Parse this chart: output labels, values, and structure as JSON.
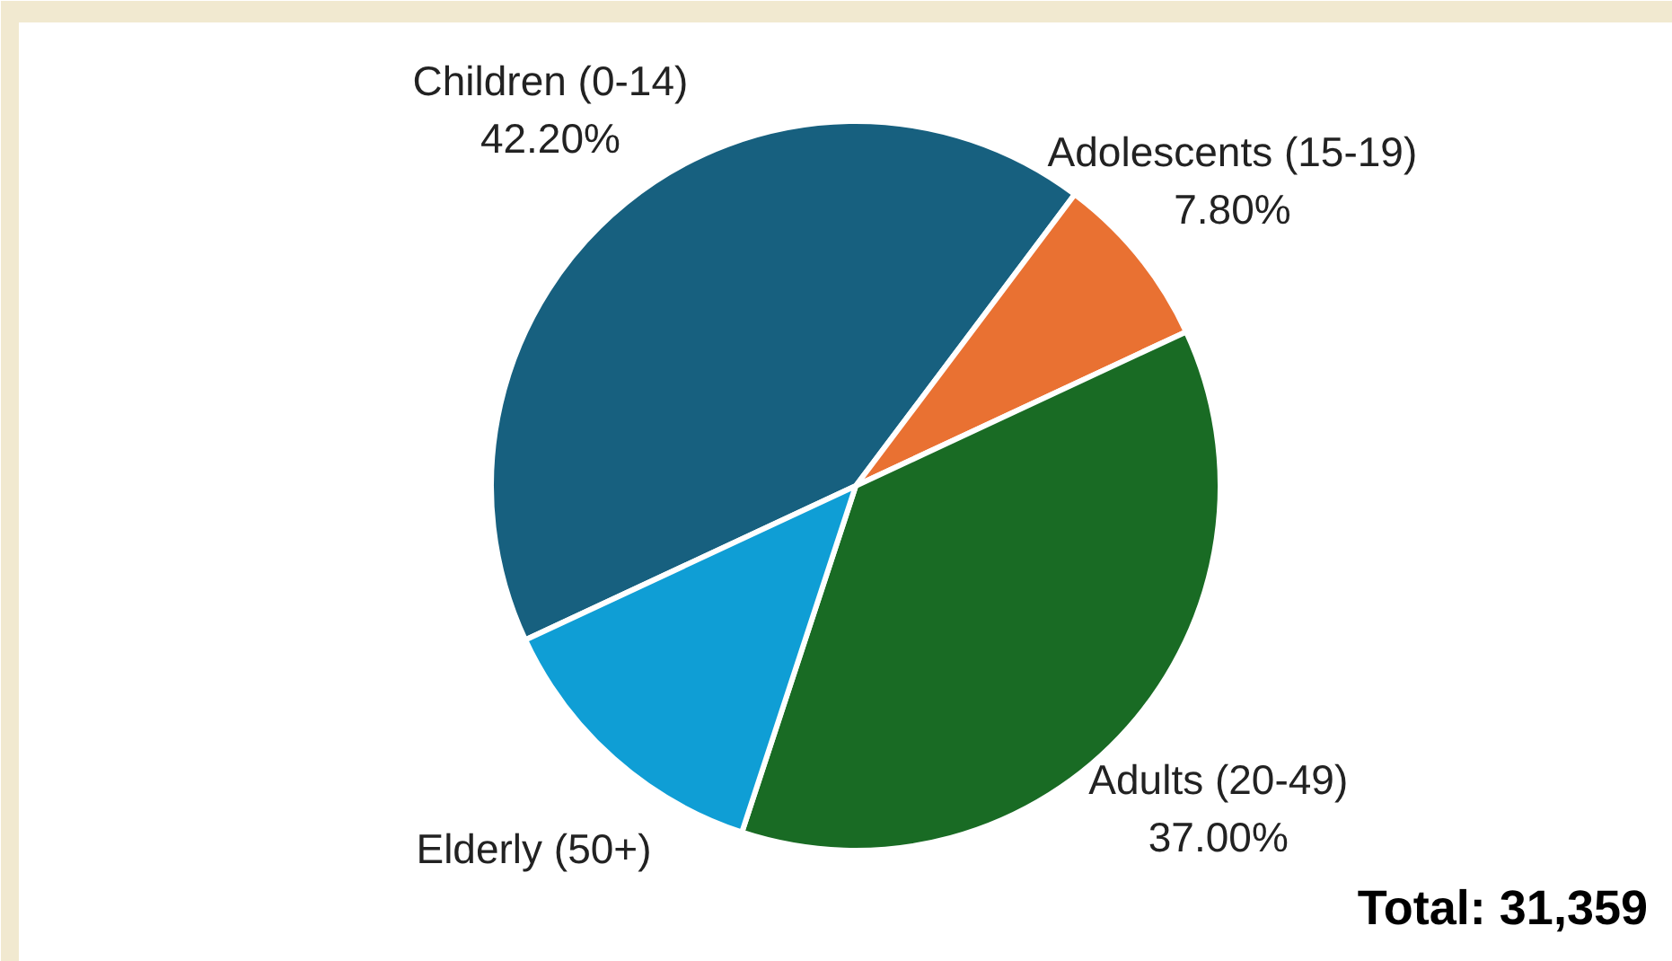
{
  "chart_data": {
    "type": "pie",
    "categories": [
      "Children (0-14)",
      "Adolescents (15-19)",
      "Adults (20-49)",
      "Elderly (50+)"
    ],
    "values": [
      42.2,
      7.8,
      37.0,
      13.0
    ],
    "value_labels": [
      "42.20%",
      "7.80%",
      "37.00%",
      null
    ],
    "colors": [
      "#17607f",
      "#e97132",
      "#196b24",
      "#0f9ed5"
    ],
    "annotations": [
      "Total: 31,359"
    ]
  }
}
